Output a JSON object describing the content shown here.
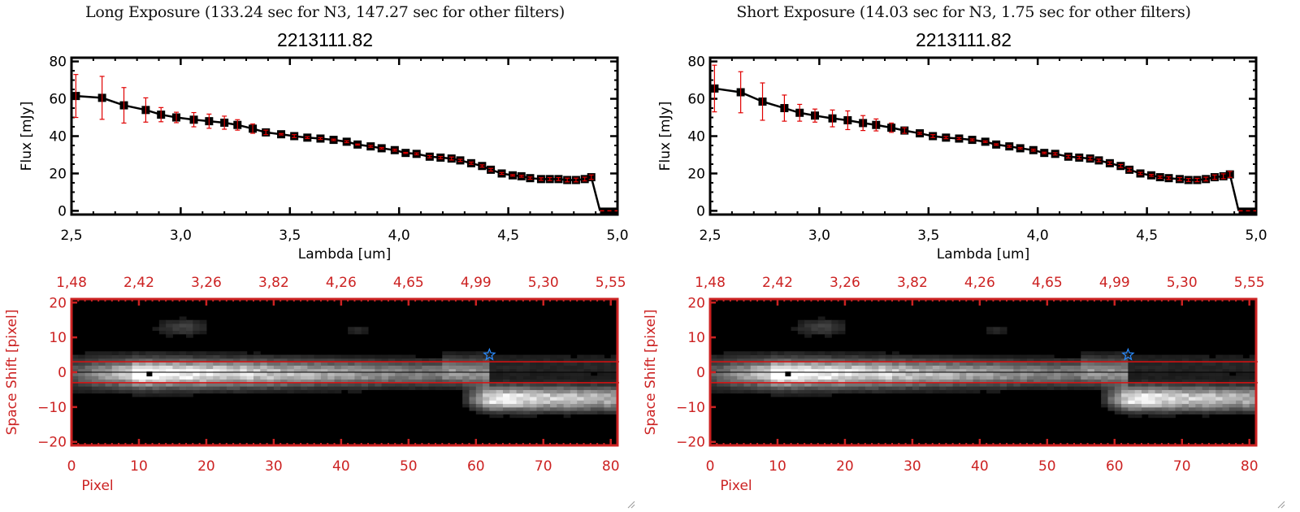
{
  "panels": [
    {
      "title": "Long Exposure (133.24 sec for N3, 147.27 sec for other filters)",
      "object_id": "2213111.82"
    },
    {
      "title": "Short Exposure (14.03 sec for N3, 1.75 sec for other filters)",
      "object_id": "2213111.82"
    }
  ],
  "colors": {
    "spectrum_line": "#000000",
    "error_bar": "#e00000",
    "image_axis": "#cc2222",
    "aperture_line": "#dd1111",
    "star_marker": "#2a8cff"
  },
  "chart_data": [
    {
      "type": "line",
      "panel": "long",
      "title": "2213111.82",
      "xlabel": "Lambda [um]",
      "ylabel": "Flux [mJy]",
      "xlim": [
        2.5,
        5.0
      ],
      "ylim": [
        -2,
        82
      ],
      "xticks": [
        "2.5",
        "3.0",
        "3.5",
        "4.0",
        "4.5",
        "5.0"
      ],
      "yticks": [
        "0",
        "20",
        "40",
        "60",
        "80"
      ],
      "grid": false,
      "series": [
        {
          "name": "flux",
          "x": [
            2.52,
            2.64,
            2.74,
            2.84,
            2.91,
            2.98,
            3.06,
            3.13,
            3.2,
            3.26,
            3.33,
            3.39,
            3.46,
            3.52,
            3.58,
            3.64,
            3.7,
            3.76,
            3.81,
            3.87,
            3.92,
            3.98,
            4.03,
            4.08,
            4.14,
            4.19,
            4.24,
            4.28,
            4.33,
            4.38,
            4.42,
            4.47,
            4.52,
            4.56,
            4.6,
            4.65,
            4.69,
            4.73,
            4.77,
            4.81,
            4.85,
            4.88,
            4.92,
            4.96,
            5.0
          ],
          "y": [
            61.5,
            60.5,
            56.5,
            54.0,
            51.5,
            50.0,
            48.8,
            48.0,
            47.2,
            46.0,
            44.0,
            42.0,
            41.0,
            40.0,
            39.2,
            38.7,
            38.0,
            37.0,
            35.5,
            34.5,
            33.5,
            32.5,
            31.0,
            30.5,
            29.0,
            28.5,
            28.0,
            27.0,
            25.5,
            24.0,
            22.0,
            20.0,
            19.0,
            18.5,
            17.5,
            17.0,
            17.0,
            17.0,
            16.5,
            16.5,
            17.0,
            18.0,
            0,
            0,
            0
          ],
          "yerr": [
            11.5,
            11.5,
            9.5,
            6.5,
            3.8,
            2.8,
            3.8,
            3.8,
            3.5,
            2.8,
            2.5,
            1.2,
            0.4,
            0.8,
            0.5,
            0.5,
            0.4,
            0.5,
            0.3,
            0.5,
            0.4,
            0.5,
            0.3,
            0.5,
            0.6,
            0.6,
            0.8,
            0.6,
            0.6,
            0.6,
            0.7,
            0.5,
            0.4,
            0.5,
            0.6,
            0.7,
            0.8,
            0.8,
            1.0,
            1.0,
            1.0,
            1.2,
            0,
            0,
            0
          ]
        }
      ]
    },
    {
      "type": "heatmap",
      "panel": "long",
      "xlabel": "Pixel",
      "ylabel": "Space Shift [pixel]",
      "xlim": [
        0,
        81
      ],
      "ylim": [
        -21,
        21
      ],
      "xticks": [
        "0",
        "10",
        "20",
        "30",
        "40",
        "50",
        "60",
        "70",
        "80"
      ],
      "yticks": [
        "-20",
        "-10",
        "0",
        "10",
        "20"
      ],
      "top_xticks": [
        "1.48",
        "2.42",
        "3.26",
        "3.82",
        "4.26",
        "4.65",
        "4.99",
        "5.30",
        "5.55"
      ],
      "aperture_lines": [
        3,
        -3
      ],
      "center_line": 0,
      "peak_marker": {
        "x": 11.5,
        "y": -0.5
      },
      "star_marker": {
        "x": 62,
        "y": 5
      }
    },
    {
      "type": "line",
      "panel": "short",
      "title": "2213111.82",
      "xlabel": "Lambda [um]",
      "ylabel": "Flux [mJy]",
      "xlim": [
        2.5,
        5.0
      ],
      "ylim": [
        -2,
        82
      ],
      "xticks": [
        "2.5",
        "3.0",
        "3.5",
        "4.0",
        "4.5",
        "5.0"
      ],
      "yticks": [
        "0",
        "20",
        "40",
        "60",
        "80"
      ],
      "grid": false,
      "series": [
        {
          "name": "flux",
          "x": [
            2.52,
            2.64,
            2.74,
            2.84,
            2.91,
            2.98,
            3.06,
            3.13,
            3.2,
            3.26,
            3.33,
            3.39,
            3.46,
            3.52,
            3.58,
            3.64,
            3.7,
            3.76,
            3.81,
            3.87,
            3.92,
            3.98,
            4.03,
            4.08,
            4.14,
            4.19,
            4.24,
            4.28,
            4.33,
            4.38,
            4.42,
            4.47,
            4.52,
            4.56,
            4.6,
            4.65,
            4.69,
            4.73,
            4.77,
            4.81,
            4.85,
            4.88,
            4.92,
            4.96,
            5.0
          ],
          "y": [
            65.5,
            63.5,
            58.5,
            55.0,
            52.5,
            51.0,
            49.5,
            48.5,
            47.0,
            46.0,
            44.5,
            43.0,
            41.5,
            40.0,
            39.2,
            38.7,
            38.0,
            37.0,
            35.5,
            34.5,
            33.5,
            32.5,
            31.0,
            30.5,
            29.0,
            28.5,
            28.0,
            27.0,
            25.5,
            24.0,
            22.0,
            20.0,
            19.0,
            18.0,
            17.5,
            17.0,
            16.5,
            16.5,
            17.0,
            18.0,
            18.5,
            19.5,
            0,
            0,
            0
          ],
          "yerr": [
            12.5,
            11.0,
            10.0,
            7.0,
            4.5,
            3.5,
            4.5,
            5.0,
            4.0,
            3.2,
            2.5,
            1.5,
            0.5,
            0.8,
            0.6,
            0.5,
            0.5,
            0.4,
            0.4,
            0.5,
            0.4,
            0.5,
            0.4,
            0.6,
            0.7,
            0.7,
            0.8,
            0.7,
            0.7,
            0.8,
            0.8,
            0.6,
            0.5,
            0.6,
            0.7,
            0.8,
            0.8,
            0.9,
            1.0,
            1.2,
            1.3,
            1.6,
            0,
            0,
            0
          ]
        }
      ]
    },
    {
      "type": "heatmap",
      "panel": "short",
      "xlabel": "Pixel",
      "ylabel": "Space Shift [pixel]",
      "xlim": [
        0,
        81
      ],
      "ylim": [
        -21,
        21
      ],
      "xticks": [
        "0",
        "10",
        "20",
        "30",
        "40",
        "50",
        "60",
        "70",
        "80"
      ],
      "yticks": [
        "-20",
        "-10",
        "0",
        "10",
        "20"
      ],
      "top_xticks": [
        "1.48",
        "2.42",
        "3.26",
        "3.82",
        "4.26",
        "4.65",
        "4.99",
        "5.30",
        "5.55"
      ],
      "aperture_lines": [
        3,
        -3
      ],
      "center_line": 0,
      "peak_marker": {
        "x": 11.5,
        "y": -0.5
      },
      "star_marker": {
        "x": 62,
        "y": 5
      }
    }
  ]
}
